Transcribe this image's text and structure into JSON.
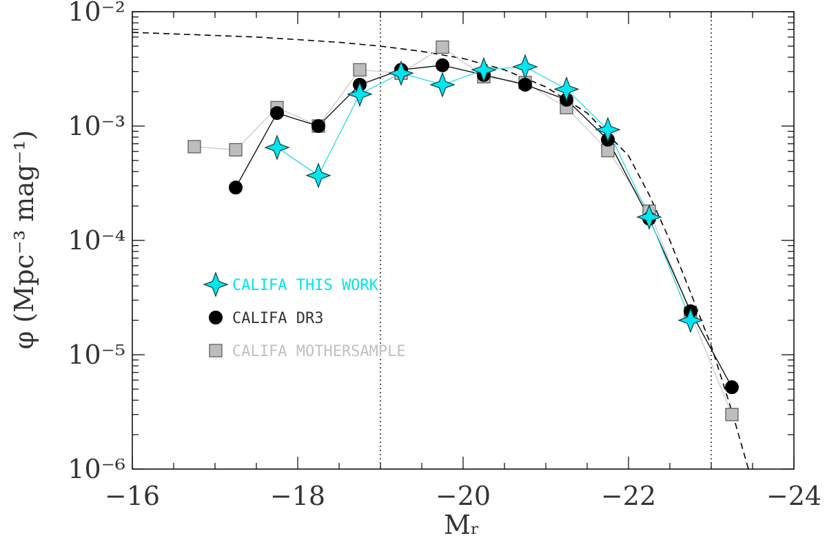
{
  "chart_data": {
    "type": "line",
    "x_axis": {
      "label": "M_r",
      "range": [
        -16,
        -24
      ],
      "ticks": [
        -16,
        -18,
        -20,
        -22,
        -24
      ],
      "tick_labels": [
        "−16",
        "−18",
        "−20",
        "−22",
        "−24"
      ]
    },
    "y_axis": {
      "label": "φ (Mpc⁻³ mag⁻¹)",
      "scale": "log",
      "range": [
        1e-06,
        0.01
      ],
      "ticks": [
        1e-06,
        1e-05,
        0.0001,
        0.001,
        0.01
      ],
      "tick_labels": [
        "10⁻⁶",
        "10⁻⁵",
        "10⁻⁴",
        "10⁻³",
        "10⁻²"
      ]
    },
    "vertical_lines": [
      -19,
      -23
    ],
    "series": [
      {
        "name": "CALIFA THIS WORK",
        "marker": "star4",
        "color": "#00e5ee",
        "line_color": "#2ad8e6",
        "x": [
          -17.75,
          -18.25,
          -18.75,
          -19.25,
          -19.75,
          -20.25,
          -20.75,
          -21.25,
          -21.75,
          -22.25,
          -22.75
        ],
        "y": [
          0.00065,
          0.00037,
          0.0019,
          0.0029,
          0.0023,
          0.0031,
          0.0033,
          0.0021,
          0.00093,
          0.00016,
          2e-05
        ]
      },
      {
        "name": "CALIFA DR3",
        "marker": "circle",
        "color": "#000000",
        "line_color": "#000000",
        "x": [
          -17.25,
          -17.75,
          -18.25,
          -18.75,
          -19.25,
          -19.75,
          -20.25,
          -20.75,
          -21.25,
          -21.75,
          -22.25,
          -22.75,
          -23.25
        ],
        "y": [
          0.00029,
          0.0013,
          0.001,
          0.0023,
          0.0031,
          0.0034,
          0.0028,
          0.0023,
          0.0017,
          0.00076,
          0.000155,
          2.4e-05,
          5.2e-06
        ]
      },
      {
        "name": "CALIFA MOTHERSAMPLE",
        "marker": "square",
        "color": "#bdbdbd",
        "line_color": "#c8c8c8",
        "x": [
          -16.75,
          -17.25,
          -17.75,
          -18.25,
          -18.75,
          -19.25,
          -19.75,
          -20.25,
          -20.75,
          -21.25,
          -21.75,
          -22.25,
          -22.75,
          -23.25
        ],
        "y": [
          0.00066,
          0.00062,
          0.00145,
          0.001,
          0.0031,
          0.0029,
          0.0049,
          0.0027,
          0.0024,
          0.00145,
          0.00061,
          0.00018,
          2.3e-05,
          3e-06
        ]
      }
    ],
    "schechter_fit": {
      "style": "dashed",
      "x": [
        -16.0,
        -16.5,
        -17.0,
        -17.5,
        -18.0,
        -18.5,
        -19.0,
        -19.5,
        -20.0,
        -20.5,
        -21.0,
        -21.5,
        -22.0,
        -22.25,
        -22.5,
        -22.75,
        -23.0,
        -23.25,
        -23.45
      ],
      "y": [
        0.0066,
        0.0064,
        0.0062,
        0.006,
        0.0057,
        0.0054,
        0.005,
        0.0045,
        0.0039,
        0.0031,
        0.0022,
        0.0013,
        0.00055,
        0.00025,
        0.0001,
        3.5e-05,
        1.2e-05,
        3.2e-06,
        1e-06
      ]
    },
    "legend": {
      "placement": "left-middle",
      "entries": [
        {
          "label": "CALIFA THIS WORK",
          "color": "#00e5ee",
          "marker": "star4"
        },
        {
          "label": "CALIFA DR3",
          "color": "#333333",
          "marker": "circle"
        },
        {
          "label": "CALIFA MOTHERSAMPLE",
          "color": "#c0c0c0",
          "marker": "square"
        }
      ]
    },
    "grid": false
  }
}
